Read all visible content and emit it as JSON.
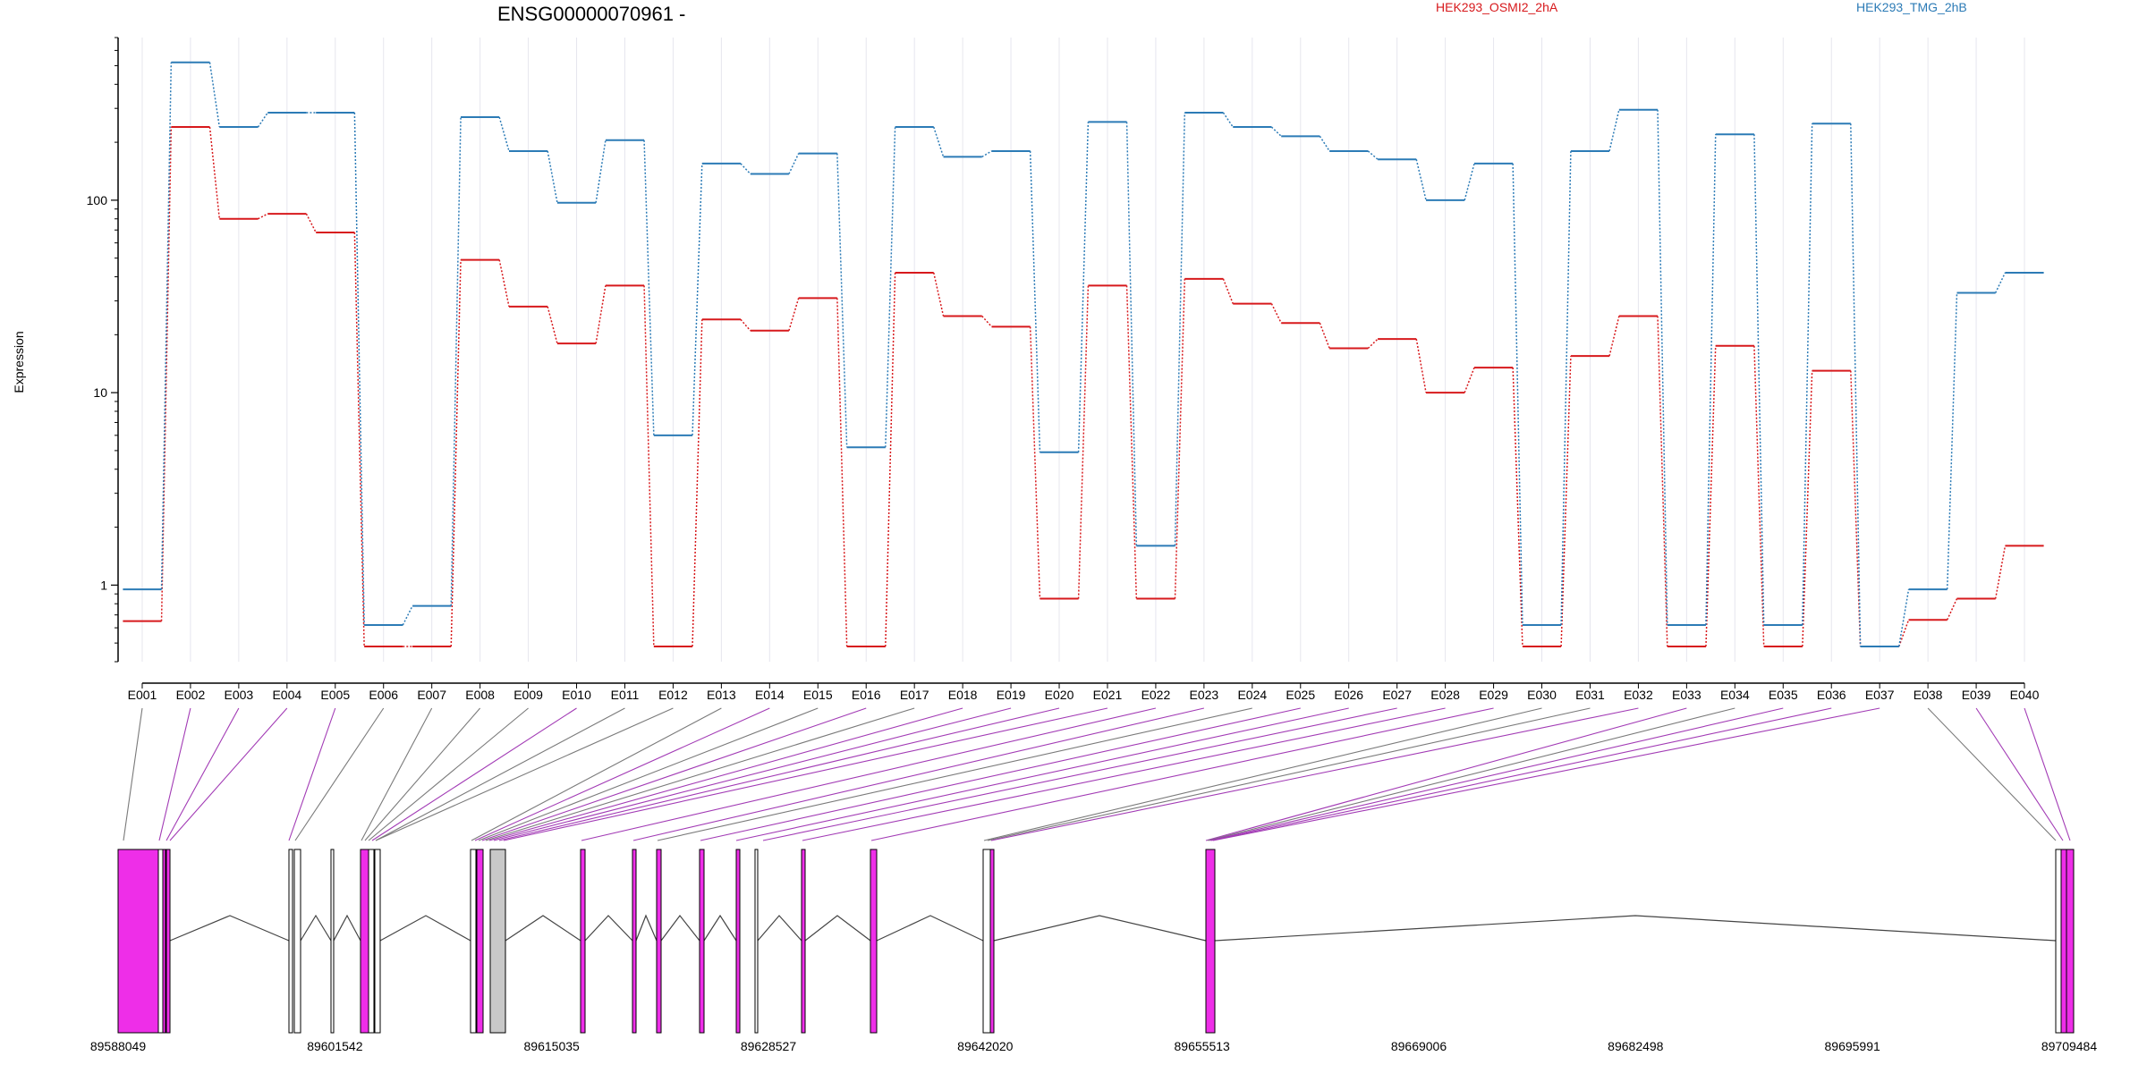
{
  "colors": {
    "series_a": "#d7191c",
    "series_b": "#2c7bb6",
    "exon_highlight": "#ee2ee8",
    "exon_plain": "#ffffff",
    "exon_shaded": "#c8c8c8",
    "link_highlight": "#a23bb5",
    "link_plain": "#7a7a7a",
    "axis": "#000000",
    "grid": "#e6e6ee"
  },
  "chart_data": {
    "type": "line",
    "title": "ENSG00000070961 -",
    "ylabel": "Expression",
    "y_scale": "log",
    "ylim": [
      0.4,
      700
    ],
    "yticks": [
      1,
      10,
      100
    ],
    "ytick_labels": [
      "1",
      "10",
      "100"
    ],
    "categories": [
      "E001",
      "E002",
      "E003",
      "E004",
      "E005",
      "E006",
      "E007",
      "E008",
      "E009",
      "E010",
      "E011",
      "E012",
      "E013",
      "E014",
      "E015",
      "E016",
      "E017",
      "E018",
      "E019",
      "E020",
      "E021",
      "E022",
      "E023",
      "E024",
      "E025",
      "E026",
      "E027",
      "E028",
      "E029",
      "E030",
      "E031",
      "E032",
      "E033",
      "E034",
      "E035",
      "E036",
      "E037",
      "E038",
      "E039",
      "E040"
    ],
    "legend": [
      "HEK293_OSMI2_2hA",
      "HEK293_TMG_2hB"
    ],
    "legend_placement": "top",
    "grid": "vertical",
    "series": [
      {
        "name": "HEK293_OSMI2_2hA",
        "color": "#d7191c",
        "values": [
          0.65,
          240,
          80,
          85,
          68,
          0.48,
          0.48,
          49,
          28,
          18,
          36,
          0.48,
          24,
          21,
          31,
          0.48,
          42,
          25,
          22,
          0.85,
          36,
          0.85,
          39,
          29,
          23,
          17,
          19,
          10,
          13.5,
          0.48,
          15.5,
          25,
          0.48,
          17.5,
          0.48,
          13,
          0.48,
          0.66,
          0.85,
          1.6
        ]
      },
      {
        "name": "HEK293_TMG_2hB",
        "color": "#2c7bb6",
        "values": [
          0.95,
          520,
          240,
          285,
          285,
          0.62,
          0.78,
          270,
          180,
          97,
          205,
          6,
          155,
          137,
          175,
          5.2,
          240,
          168,
          180,
          4.9,
          255,
          1.6,
          285,
          240,
          215,
          180,
          163,
          100,
          155,
          0.62,
          180,
          295,
          0.62,
          220,
          0.62,
          250,
          0.48,
          0.95,
          33,
          42
        ]
      }
    ]
  },
  "gene_model": {
    "coordinate_ticks": [
      "89588049",
      "89601542",
      "89615035",
      "89628527",
      "89642020",
      "89655513",
      "89669006",
      "89682498",
      "89695991",
      "89709484"
    ],
    "domain": [
      89588049,
      89709484
    ]
  }
}
